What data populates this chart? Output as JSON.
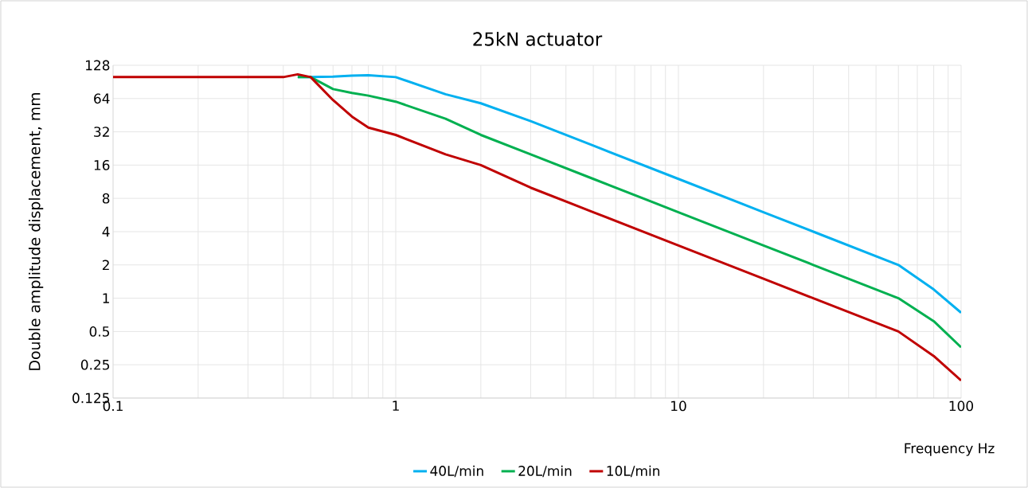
{
  "chart_data": {
    "type": "line",
    "title": "25kN actuator",
    "xlabel": "Frequency Hz",
    "ylabel": "Double amplitude displacement, mm",
    "x": [
      0.1,
      0.2,
      0.3,
      0.4,
      0.45,
      0.5,
      0.6,
      0.7,
      0.8,
      1,
      1.5,
      2,
      3,
      5,
      10,
      20,
      30,
      60,
      80,
      100
    ],
    "series": [
      {
        "name": "40L/min",
        "color": "#00b0f0",
        "values": [
          null,
          null,
          null,
          null,
          100,
          100,
          101,
          103,
          104,
          100,
          70,
          58,
          40,
          24,
          12,
          6,
          4,
          2,
          1.2,
          0.74
        ]
      },
      {
        "name": "20L/min",
        "color": "#00b050",
        "values": [
          null,
          null,
          null,
          null,
          100,
          100,
          78,
          72,
          68,
          60,
          42,
          30,
          20,
          12,
          6,
          3,
          2,
          1,
          0.62,
          0.36
        ]
      },
      {
        "name": "10L/min",
        "color": "#c00000",
        "values": [
          100,
          100,
          100,
          100,
          106,
          100,
          62,
          44,
          35,
          30,
          20,
          16,
          10,
          6,
          3,
          1.5,
          1,
          0.5,
          0.3,
          0.18
        ]
      }
    ],
    "log": "xy",
    "xlim": [
      0.1,
      100
    ],
    "xticks": [
      0.1,
      1,
      10,
      100
    ],
    "ylim": [
      0.125,
      128
    ],
    "yticks": [
      0.125,
      0.25,
      0.5,
      1,
      2,
      4,
      8,
      16,
      32,
      64,
      128
    ],
    "grid": true,
    "legend": "bottom"
  }
}
